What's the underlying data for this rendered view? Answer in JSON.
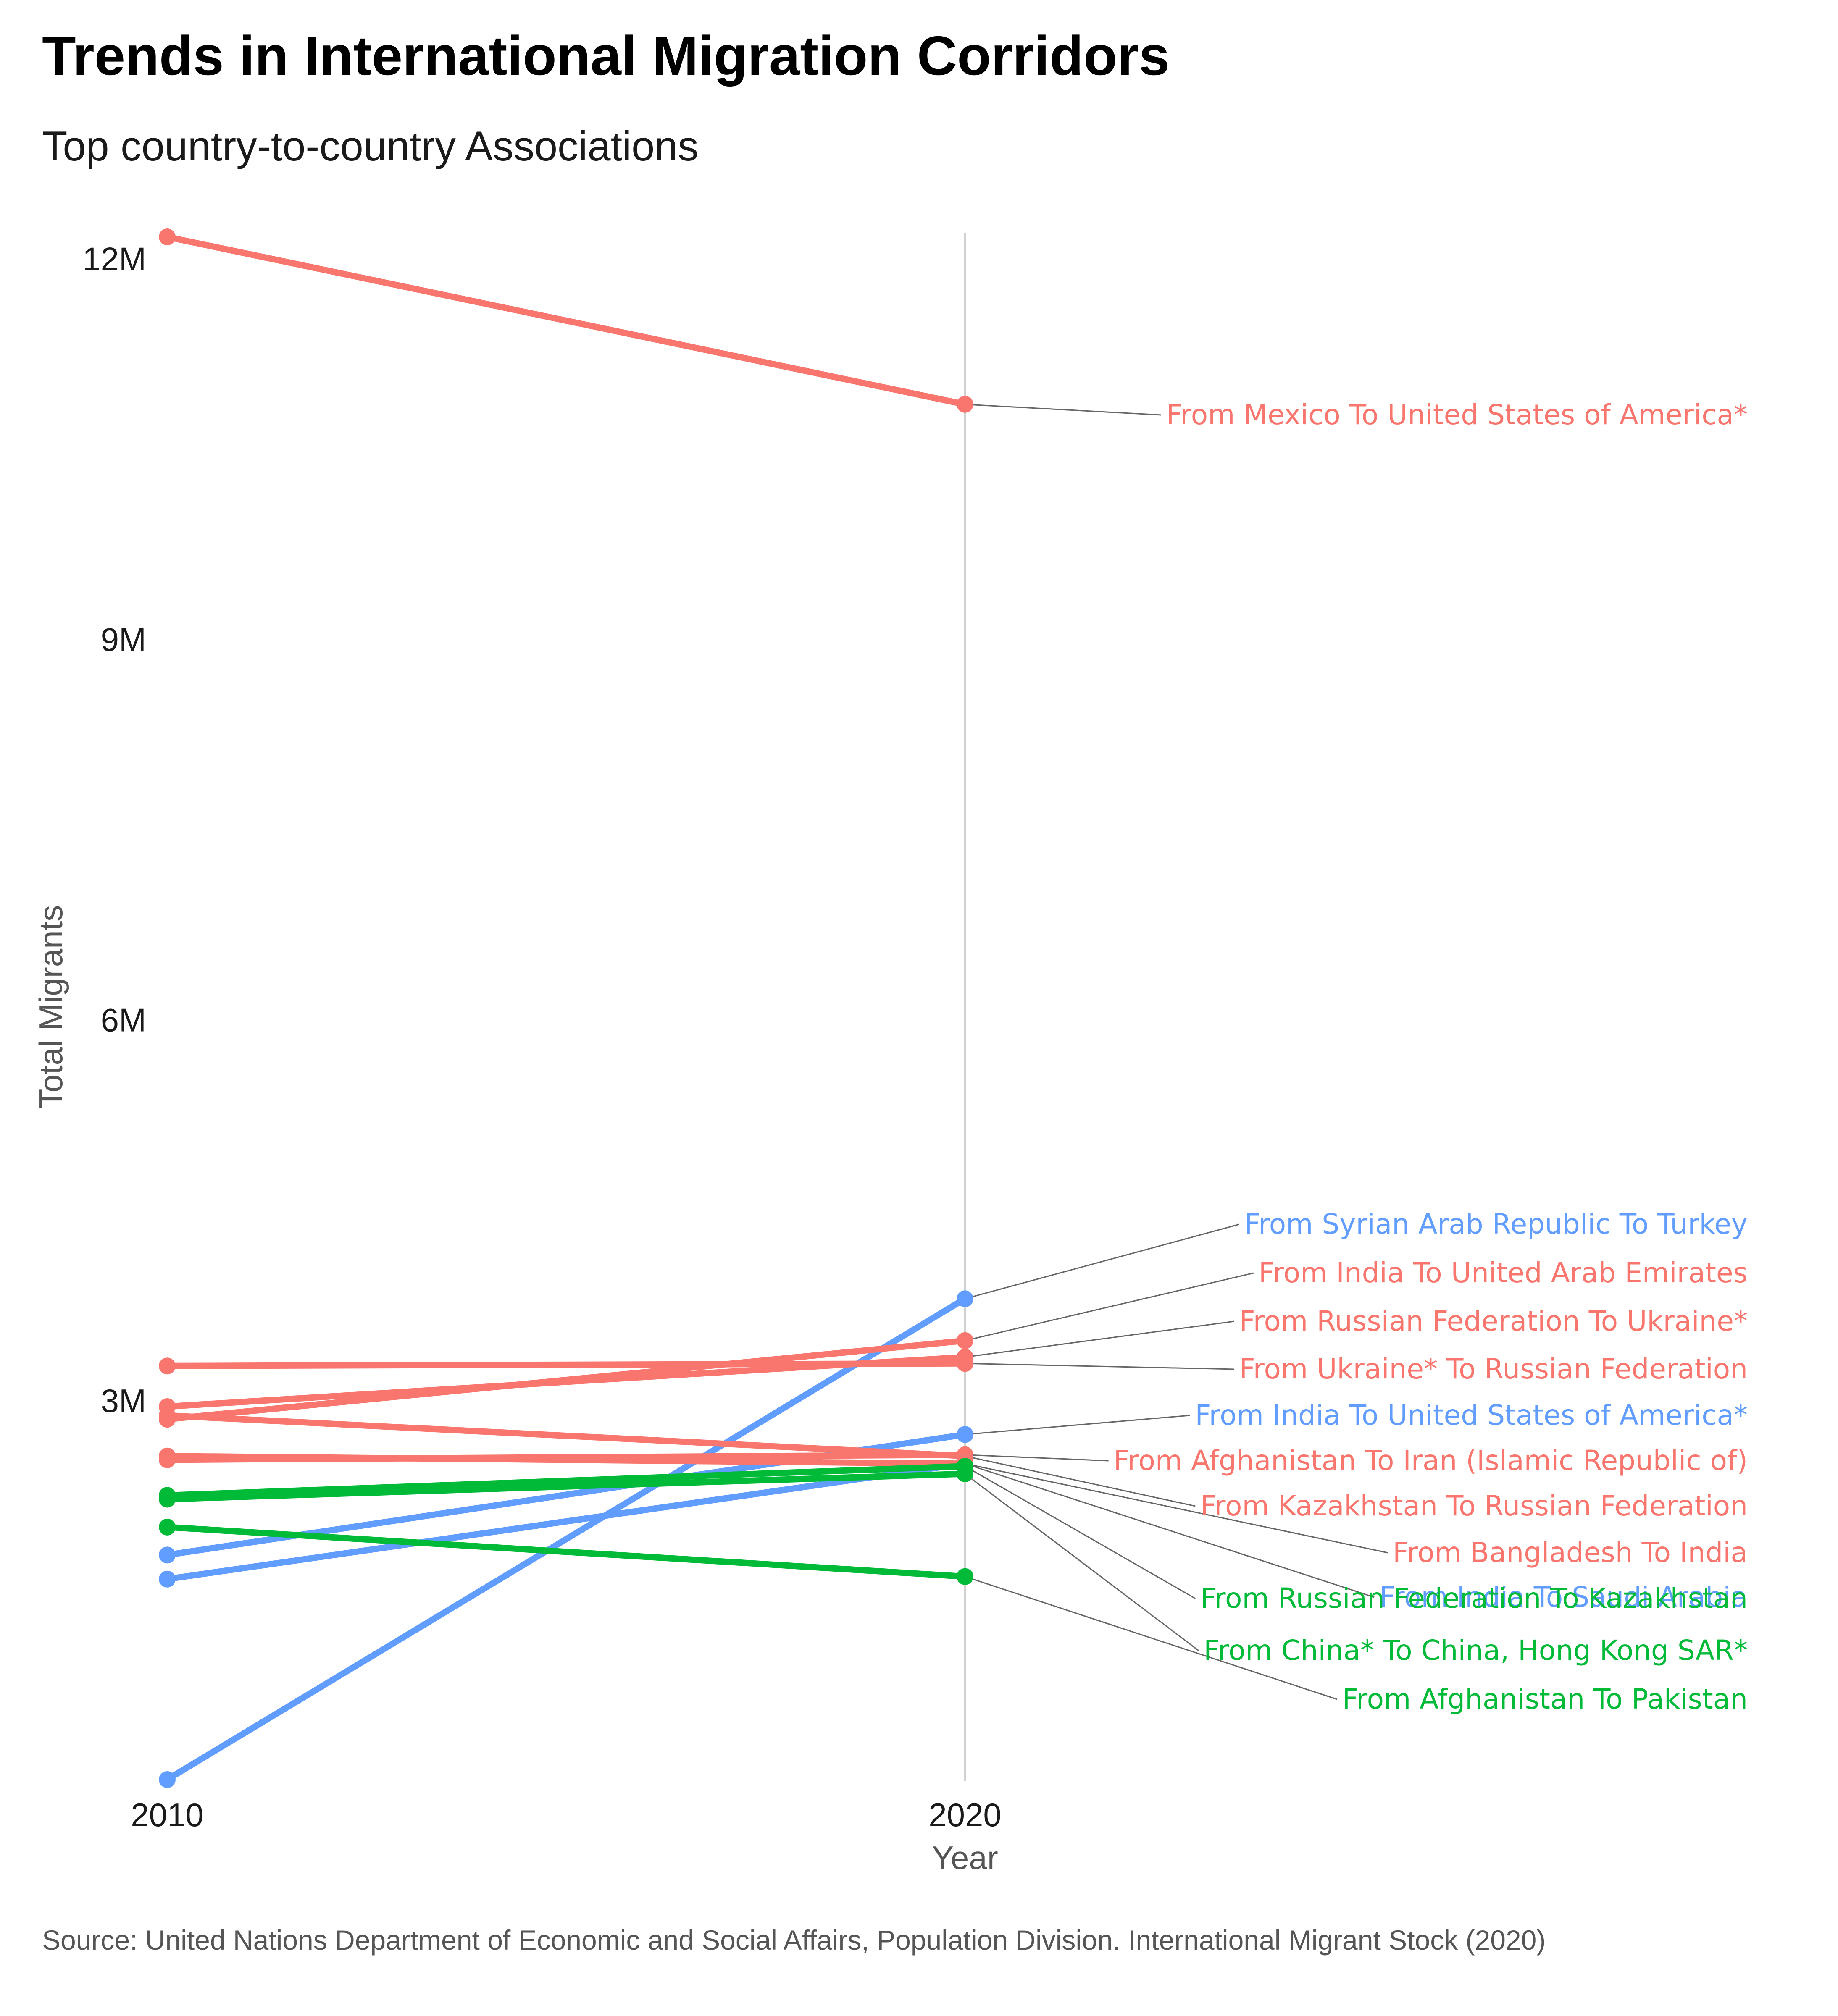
{
  "chart_data": {
    "type": "line",
    "title": "Trends in International Migration Corridors",
    "subtitle": "Top country-to-country Associations",
    "xlabel": "Year",
    "ylabel": "Total Migrants",
    "caption": "Source: United Nations Department of Economic and Social Affairs, Population Division. International Migrant Stock (2020)",
    "x": [
      2010,
      2020
    ],
    "x_tick_labels": [
      "2010",
      "2020"
    ],
    "ylim": [
      0,
      12200000
    ],
    "y_ticks": [
      3000000,
      6000000,
      9000000,
      12000000
    ],
    "y_tick_labels": [
      "3M",
      "6M",
      "9M",
      "12M"
    ],
    "grid": "vertical line at 2020 only",
    "legend": "none (direct labels at right)",
    "colors": {
      "red": "#f8766d",
      "blue": "#619cff",
      "green": "#00ba38",
      "leader": "#666666",
      "gridline": "#d0d0d0"
    },
    "series": [
      {
        "name": "From Mexico To United States of America*",
        "color": "#f8766d",
        "values": [
          12170000,
          10850000
        ]
      },
      {
        "name": "From Syrian Arab Republic To Turkey",
        "color": "#619cff",
        "values": [
          10000,
          3800000
        ]
      },
      {
        "name": "From India To United Arab Emirates",
        "color": "#f8766d",
        "values": [
          2850000,
          3470000
        ]
      },
      {
        "name": "From Russian Federation To Ukraine*",
        "color": "#f8766d",
        "values": [
          2950000,
          3340000
        ]
      },
      {
        "name": "From Ukraine* To Russian Federation",
        "color": "#f8766d",
        "values": [
          3270000,
          3290000
        ]
      },
      {
        "name": "From India To United States of America*",
        "color": "#619cff",
        "values": [
          1780000,
          2730000
        ]
      },
      {
        "name": "From Afghanistan To Iran (Islamic Republic of)",
        "color": "#f8766d",
        "values": [
          2530000,
          2570000
        ]
      },
      {
        "name": "From Kazakhstan To Russian Federation",
        "color": "#f8766d",
        "values": [
          2880000,
          2560000
        ]
      },
      {
        "name": "From India To Saudi Arabia",
        "color": "#619cff",
        "values": [
          1590000,
          2500000
        ]
      },
      {
        "name": "From Bangladesh To India",
        "color": "#f8766d",
        "values": [
          2560000,
          2500000
        ]
      },
      {
        "name": "From Russian Federation To Kazakhstan",
        "color": "#00ba38",
        "values": [
          2250000,
          2480000
        ]
      },
      {
        "name": "From China* To China, Hong Kong SAR*",
        "color": "#00ba38",
        "values": [
          2220000,
          2420000
        ]
      },
      {
        "name": "From Afghanistan To Pakistan",
        "color": "#00ba38",
        "values": [
          2000000,
          1610000
        ]
      }
    ]
  }
}
